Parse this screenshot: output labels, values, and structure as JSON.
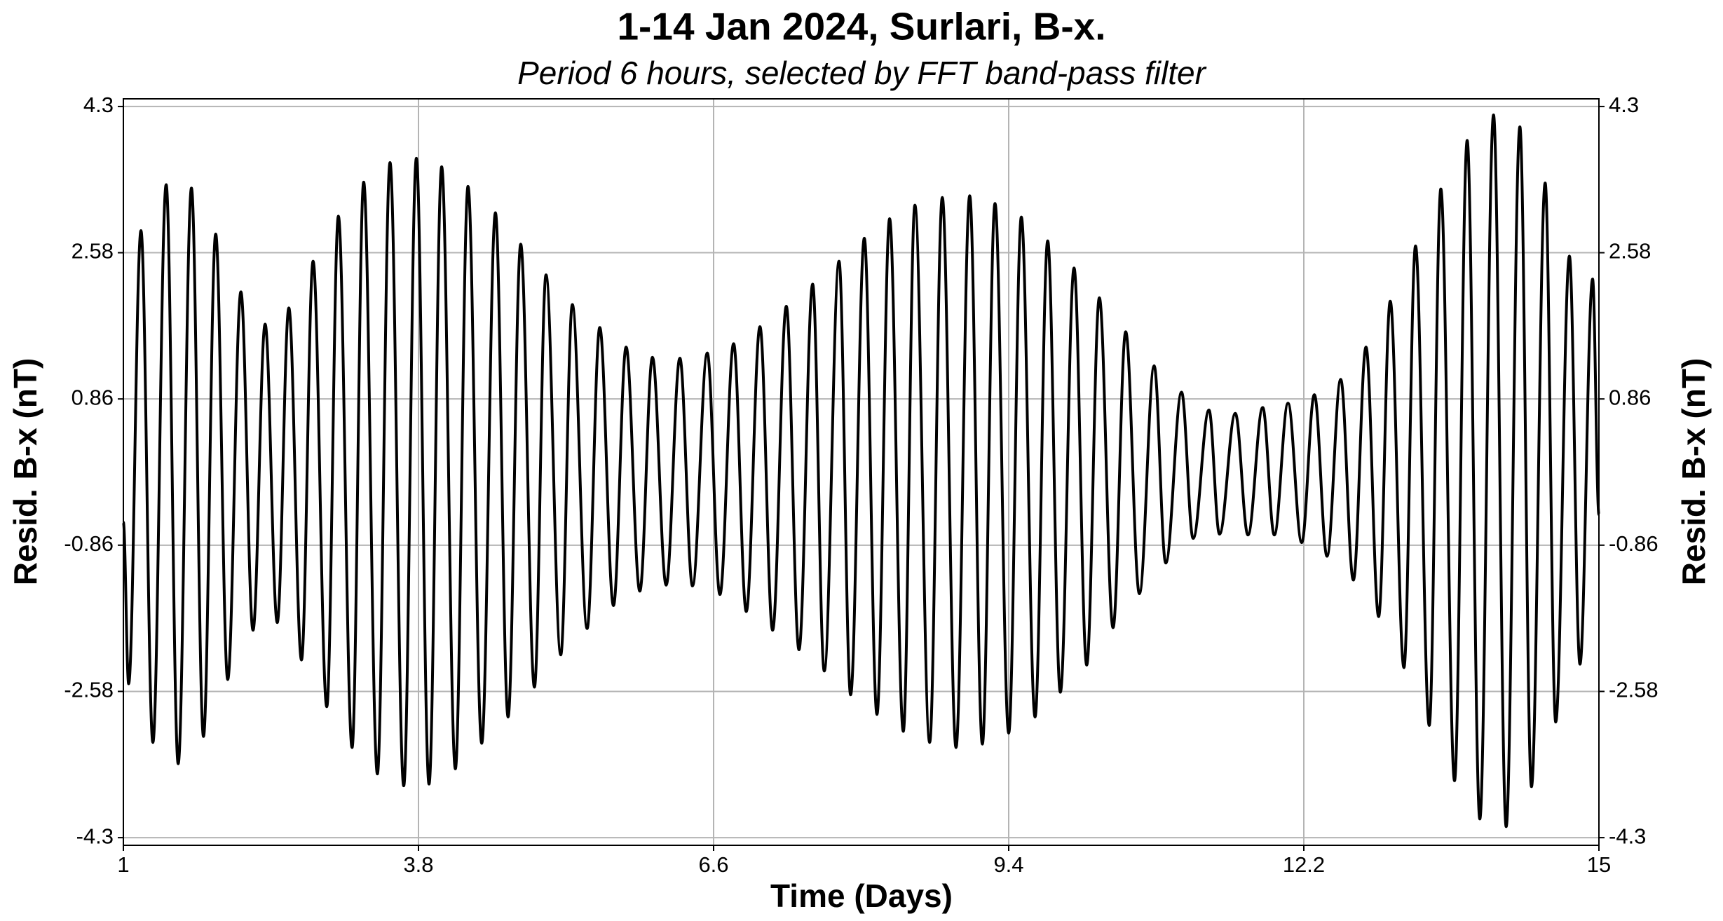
{
  "chart_data": {
    "type": "line",
    "title": "1-14 Jan 2024, Surlari, B-x.",
    "subtitle": "Period 6 hours, selected by FFT band-pass filter",
    "xlabel": "Time (Days)",
    "ylabel": "Resid. B-x (nT)",
    "color": "#000000",
    "grid": true,
    "xlim": [
      1,
      15
    ],
    "ylim": [
      -4.39,
      4.39
    ],
    "xticks": [
      1,
      3.8,
      6.6,
      9.4,
      12.2,
      15
    ],
    "yticks": [
      -4.3,
      -2.58,
      -0.86,
      0.86,
      2.58,
      4.3
    ],
    "y2ticks": [
      -4.3,
      -2.58,
      -0.86,
      0.86,
      2.58,
      4.3
    ],
    "x": [
      1.0,
      1.05,
      1.167,
      1.28,
      1.406,
      1.52,
      1.646,
      1.76,
      1.876,
      1.99,
      2.115,
      2.23,
      2.345,
      2.46,
      2.57,
      2.69,
      2.8,
      2.93,
      3.04,
      3.17,
      3.28,
      3.41,
      3.53,
      3.66,
      3.78,
      3.9,
      4.02,
      4.15,
      4.27,
      4.4,
      4.53,
      4.65,
      4.77,
      4.9,
      5.01,
      5.15,
      5.26,
      5.4,
      5.52,
      5.65,
      5.77,
      5.9,
      6.02,
      6.15,
      6.28,
      6.4,
      6.54,
      6.66,
      6.79,
      6.91,
      7.04,
      7.16,
      7.29,
      7.41,
      7.54,
      7.65,
      7.79,
      7.9,
      8.03,
      8.15,
      8.27,
      8.4,
      8.51,
      8.65,
      8.77,
      8.9,
      9.03,
      9.15,
      9.27,
      9.4,
      9.52,
      9.65,
      9.77,
      9.89,
      10.02,
      10.14,
      10.26,
      10.39,
      10.51,
      10.64,
      10.78,
      10.89,
      11.04,
      11.15,
      11.3,
      11.4,
      11.55,
      11.67,
      11.81,
      11.92,
      12.05,
      12.18,
      12.3,
      12.42,
      12.55,
      12.67,
      12.79,
      12.91,
      13.02,
      13.15,
      13.26,
      13.39,
      13.5,
      13.63,
      13.75,
      13.87,
      14.0,
      14.12,
      14.25,
      14.36,
      14.49,
      14.59,
      14.72,
      14.82,
      14.94,
      15.0
    ],
    "values": [
      -0.59,
      -2.49,
      2.84,
      -3.18,
      3.38,
      -3.43,
      3.34,
      -3.11,
      2.8,
      -2.44,
      2.12,
      -1.86,
      1.74,
      -1.77,
      1.93,
      -2.21,
      2.48,
      -2.76,
      3.01,
      -3.24,
      3.41,
      -3.55,
      3.64,
      -3.69,
      3.69,
      -3.67,
      3.59,
      -3.49,
      3.36,
      -3.19,
      3.05,
      -2.88,
      2.68,
      -2.53,
      2.32,
      -2.15,
      1.97,
      -1.84,
      1.7,
      -1.57,
      1.47,
      -1.4,
      1.35,
      -1.33,
      1.34,
      -1.34,
      1.4,
      -1.44,
      1.51,
      -1.64,
      1.71,
      -1.86,
      1.95,
      -2.09,
      2.21,
      -2.34,
      2.48,
      -2.62,
      2.75,
      -2.85,
      2.98,
      -3.05,
      3.14,
      -3.18,
      3.23,
      -3.24,
      3.25,
      -3.2,
      3.16,
      -3.07,
      3.0,
      -2.88,
      2.72,
      -2.59,
      2.4,
      -2.27,
      2.05,
      -1.83,
      1.65,
      -1.43,
      1.25,
      -1.07,
      0.94,
      -0.78,
      0.73,
      -0.73,
      0.69,
      -0.74,
      0.76,
      -0.74,
      0.81,
      -0.83,
      0.91,
      -0.99,
      1.09,
      -1.27,
      1.47,
      -1.7,
      2.01,
      -2.3,
      2.66,
      -2.98,
      3.33,
      -3.63,
      3.9,
      -4.08,
      4.2,
      -4.17,
      4.06,
      -3.7,
      3.4,
      -2.94,
      2.54,
      -2.26,
      2.27,
      -0.5
    ]
  }
}
